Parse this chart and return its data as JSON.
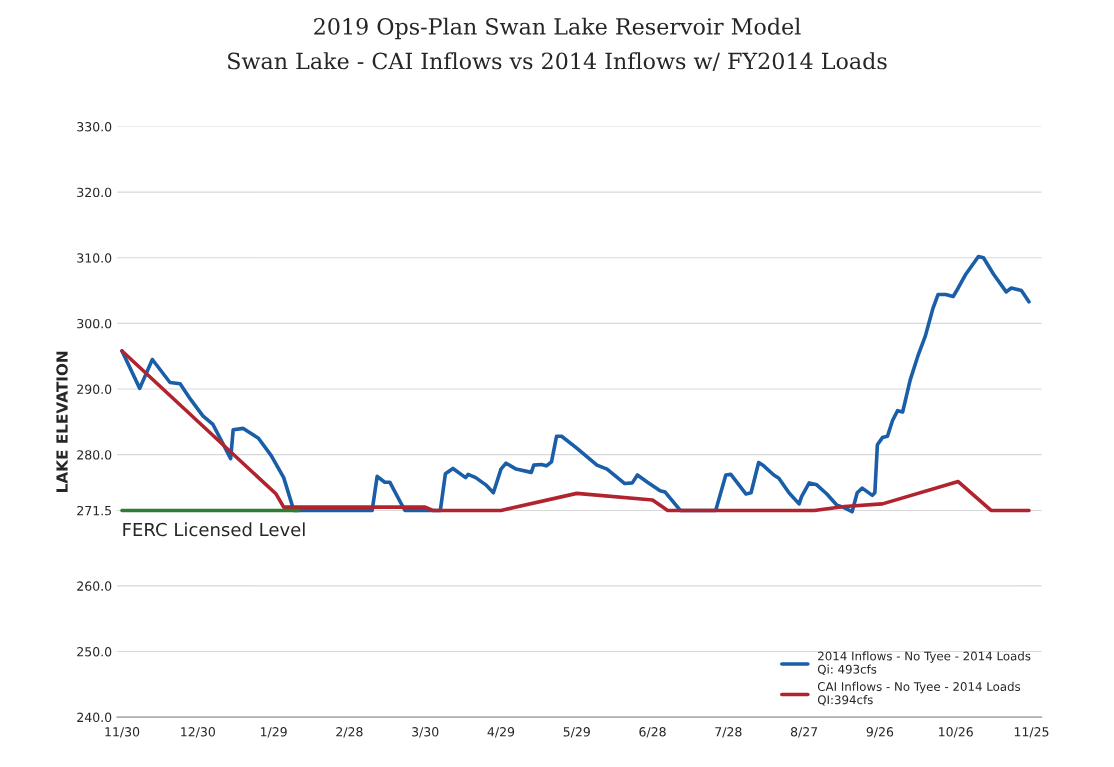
{
  "chart_data": {
    "type": "line",
    "title": "2019 Ops-Plan Swan Lake Reservoir Model",
    "subtitle": "Swan Lake - CAI Inflows vs 2014 Inflows w/ FY2014 Loads",
    "ylabel": "LAKE ELEVATION",
    "xlim": [
      "2013-11-28",
      "2014-11-29"
    ],
    "ylim": [
      240,
      330
    ],
    "xticks": [
      {
        "value": "2013-11-30",
        "label": "11/30"
      },
      {
        "value": "2013-12-30",
        "label": "12/30"
      },
      {
        "value": "2014-01-29",
        "label": "1/29"
      },
      {
        "value": "2014-02-28",
        "label": "2/28"
      },
      {
        "value": "2014-03-30",
        "label": "3/30"
      },
      {
        "value": "2014-04-29",
        "label": "4/29"
      },
      {
        "value": "2014-05-29",
        "label": "5/29"
      },
      {
        "value": "2014-06-28",
        "label": "6/28"
      },
      {
        "value": "2014-07-28",
        "label": "7/28"
      },
      {
        "value": "2014-08-27",
        "label": "8/27"
      },
      {
        "value": "2014-09-26",
        "label": "9/26"
      },
      {
        "value": "2014-10-26",
        "label": "10/26"
      },
      {
        "value": "2014-11-25",
        "label": "11/25"
      }
    ],
    "yticks": [
      {
        "value": 240,
        "label": "240.0"
      },
      {
        "value": 250,
        "label": "250.0"
      },
      {
        "value": 260,
        "label": "260.0"
      },
      {
        "value": 271.5,
        "label": "271.5"
      },
      {
        "value": 280,
        "label": "280.0"
      },
      {
        "value": 290,
        "label": "290.0"
      },
      {
        "value": 300,
        "label": "300.0"
      },
      {
        "value": 310,
        "label": "310.0"
      },
      {
        "value": 320,
        "label": "320.0"
      },
      {
        "value": 330,
        "label": "330.0"
      }
    ],
    "grid": "y",
    "legend": "bottom right",
    "line_style": "solid",
    "marker": "none",
    "series": [
      {
        "name": "2014 Inflows - No Tyee - 2014 Loads\nQi: 493cfs",
        "color": "#1a5ea8",
        "x": [
          "2013-11-30",
          "2013-12-07",
          "2013-12-12",
          "2013-12-19",
          "2013-12-23",
          "2013-12-27",
          "2014-01-01",
          "2014-01-05",
          "2014-01-12",
          "2014-01-13",
          "2014-01-17",
          "2014-01-23",
          "2014-01-28",
          "2014-02-02",
          "2014-02-06",
          "2014-03-09",
          "2014-03-11",
          "2014-03-14",
          "2014-03-16",
          "2014-03-20",
          "2014-03-22",
          "2014-04-05",
          "2014-04-07",
          "2014-04-10",
          "2014-04-15",
          "2014-04-16",
          "2014-04-19",
          "2014-04-23",
          "2014-04-26",
          "2014-04-29",
          "2014-05-01",
          "2014-05-05",
          "2014-05-11",
          "2014-05-12",
          "2014-05-15",
          "2014-05-17",
          "2014-05-19",
          "2014-05-21",
          "2014-05-23",
          "2014-05-29",
          "2014-06-06",
          "2014-06-10",
          "2014-06-17",
          "2014-06-20",
          "2014-06-22",
          "2014-06-26",
          "2014-07-01",
          "2014-07-03",
          "2014-07-09",
          "2014-07-23",
          "2014-07-27",
          "2014-07-29",
          "2014-08-04",
          "2014-08-06",
          "2014-08-09",
          "2014-08-11",
          "2014-08-15",
          "2014-08-17",
          "2014-08-21",
          "2014-08-25",
          "2014-08-26",
          "2014-08-29",
          "2014-09-01",
          "2014-09-05",
          "2014-09-09",
          "2014-09-12",
          "2014-09-15",
          "2014-09-17",
          "2014-09-19",
          "2014-09-23",
          "2014-09-24",
          "2014-09-25",
          "2014-09-27",
          "2014-09-29",
          "2014-10-01",
          "2014-10-03",
          "2014-10-05",
          "2014-10-08",
          "2014-10-11",
          "2014-10-14",
          "2014-10-17",
          "2014-10-19",
          "2014-10-22",
          "2014-10-25",
          "2014-10-27",
          "2014-10-30",
          "2014-11-04",
          "2014-11-06",
          "2014-11-10",
          "2014-11-15",
          "2014-11-17",
          "2014-11-21",
          "2014-11-24"
        ],
        "values": [
          295.8,
          290.1,
          294.5,
          291.0,
          290.8,
          288.5,
          285.9,
          284.6,
          279.4,
          283.8,
          284.0,
          282.5,
          279.9,
          276.5,
          271.5,
          271.5,
          276.7,
          275.8,
          275.8,
          272.9,
          271.5,
          271.5,
          277.1,
          277.9,
          276.5,
          277.0,
          276.5,
          275.4,
          274.2,
          277.8,
          278.7,
          277.8,
          277.3,
          278.4,
          278.5,
          278.3,
          278.9,
          282.8,
          282.8,
          281.0,
          278.4,
          277.8,
          275.6,
          275.7,
          276.9,
          275.8,
          274.5,
          274.3,
          271.5,
          271.5,
          276.9,
          277.0,
          274.0,
          274.2,
          278.8,
          278.3,
          276.9,
          276.4,
          274.2,
          272.5,
          273.6,
          275.7,
          275.4,
          274.0,
          272.3,
          271.9,
          271.3,
          274.2,
          274.9,
          273.8,
          274.2,
          281.5,
          282.6,
          282.8,
          285.2,
          286.7,
          286.5,
          291.4,
          295.0,
          298.1,
          302.3,
          304.4,
          304.4,
          304.1,
          305.4,
          307.5,
          310.2,
          310.0,
          307.5,
          304.8,
          305.4,
          305.0,
          303.3
        ]
      },
      {
        "name": "CAI Inflows - No Tyee - 2014 Loads\nQI:394cfs",
        "color": "#b0232f",
        "x": [
          "2013-11-30",
          "2014-01-30",
          "2014-02-02",
          "2014-03-30",
          "2014-04-02",
          "2014-04-29",
          "2014-05-29",
          "2014-06-28",
          "2014-07-04",
          "2014-08-31",
          "2014-09-12",
          "2014-09-27",
          "2014-10-27",
          "2014-11-09",
          "2014-11-24"
        ],
        "values": [
          295.8,
          274.0,
          272.0,
          272.0,
          271.5,
          271.5,
          274.1,
          273.1,
          271.5,
          271.5,
          272.1,
          272.5,
          275.9,
          271.5,
          271.5
        ]
      },
      {
        "color": "#2e7d32",
        "x": [
          "2013-11-30",
          "2014-02-08"
        ],
        "values": [
          271.5,
          271.5
        ]
      }
    ],
    "annotations": [
      "FERC Licensed Level"
    ]
  }
}
